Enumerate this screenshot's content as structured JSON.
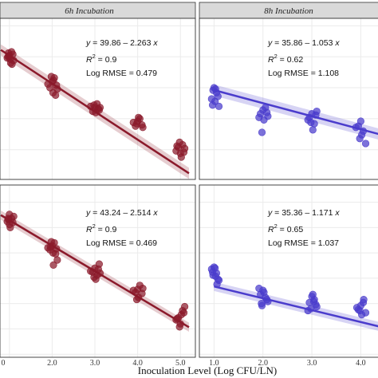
{
  "chart_data": [
    {
      "type": "scatter",
      "panel": "top-left",
      "strip": "6h Incubation",
      "color": "#8b1a2b",
      "fit": {
        "intercept": 39.86,
        "slope": -2.263
      },
      "equation": {
        "y": "y",
        "eq_text": " = 39.86 – 2.263 ",
        "x": "x"
      },
      "r2": {
        "label": "R",
        "sup": "2",
        "value": " = 0.9"
      },
      "rmse": "Log RMSE = 0.479",
      "x": [
        1.0,
        1.05,
        0.95,
        1.1,
        1.0,
        0.98,
        1.02,
        1.08,
        0.97,
        1.03,
        1.06,
        2.0,
        1.95,
        2.05,
        2.1,
        2.02,
        1.9,
        2.08,
        1.98,
        2.03,
        2.12,
        3.0,
        2.95,
        3.05,
        3.1,
        2.9,
        3.02,
        3.08,
        2.98,
        3.12,
        4.0,
        3.95,
        4.05,
        4.1,
        3.9,
        4.02,
        4.12,
        3.98,
        5.0,
        4.95,
        5.05,
        4.9,
        5.1,
        5.02,
        4.98,
        4.92,
        5.08
      ],
      "y": [
        37.6,
        37.9,
        37.4,
        37.2,
        37.5,
        37.8,
        37.3,
        37.7,
        37.5,
        37.0,
        36.9,
        35.5,
        35.0,
        35.8,
        35.2,
        34.6,
        35.3,
        34.4,
        35.9,
        35.6,
        34.9,
        33.4,
        33.1,
        33.7,
        33.2,
        33.5,
        33.0,
        33.3,
        33.6,
        33.4,
        32.3,
        31.9,
        32.5,
        32.0,
        32.2,
        32.6,
        31.8,
        32.1,
        29.7,
        30.2,
        30.4,
        29.9,
        30.1,
        29.4,
        30.6,
        30.3,
        29.8
      ],
      "xlim": [
        0.78,
        5.35
      ],
      "ylim": [
        27.6,
        40.6
      ]
    },
    {
      "type": "scatter",
      "panel": "top-right",
      "strip": "8h Incubation",
      "color": "#4a3ccc",
      "fit": {
        "intercept": 35.86,
        "slope": -1.053
      },
      "equation": {
        "y": "y",
        "eq_text": " = 35.86 – 1.053 ",
        "x": "x"
      },
      "r2": {
        "label": "R",
        "sup": "2",
        "value": " = 0.62"
      },
      "rmse": "Log RMSE = 1.108",
      "x": [
        1.0,
        1.05,
        0.95,
        1.1,
        0.98,
        1.02,
        1.08,
        0.97,
        1.03,
        2.0,
        1.95,
        2.05,
        2.1,
        1.92,
        2.08,
        1.98,
        2.02,
        3.0,
        2.95,
        3.05,
        3.1,
        2.92,
        3.02,
        3.08,
        2.98,
        4.0,
        3.95,
        4.05,
        4.1,
        3.9,
        4.02,
        3.98
      ],
      "y": [
        35.0,
        34.6,
        34.1,
        33.5,
        34.8,
        33.9,
        34.3,
        33.6,
        34.9,
        33.2,
        32.9,
        33.4,
        32.7,
        32.6,
        33.0,
        31.4,
        32.4,
        32.9,
        32.6,
        32.1,
        33.1,
        32.4,
        31.6,
        32.8,
        32.2,
        32.3,
        31.9,
        31.5,
        30.5,
        31.8,
        31.2,
        30.9
      ],
      "xlim": [
        0.7,
        4.45
      ],
      "ylim": [
        27.6,
        40.6
      ]
    },
    {
      "type": "scatter",
      "panel": "bottom-left",
      "strip": "",
      "color": "#8b1a2b",
      "fit": {
        "intercept": 43.24,
        "slope": -2.514
      },
      "equation": {
        "y": "y",
        "eq_text": " = 43.24 – 2.514 ",
        "x": "x"
      },
      "r2": {
        "label": "R",
        "sup": "2",
        "value": " = 0.9"
      },
      "rmse": "Log RMSE = 0.469",
      "x": [
        1.0,
        1.05,
        0.95,
        1.1,
        1.0,
        0.98,
        1.02,
        1.08,
        0.97,
        2.0,
        1.95,
        2.05,
        2.1,
        2.02,
        1.9,
        2.08,
        1.98,
        2.03,
        2.12,
        1.96,
        3.0,
        2.95,
        3.05,
        3.1,
        2.9,
        3.02,
        3.08,
        2.98,
        3.12,
        4.0,
        3.95,
        4.05,
        4.1,
        3.9,
        4.02,
        4.12,
        3.98,
        5.0,
        4.95,
        5.05,
        4.9,
        5.1,
        5.02,
        4.98,
        4.92,
        5.08
      ],
      "y": [
        41.3,
        40.9,
        40.6,
        41.1,
        40.3,
        40.8,
        40.0,
        40.5,
        40.9,
        38.2,
        37.8,
        38.5,
        37.9,
        37.5,
        38.0,
        37.4,
        38.6,
        36.3,
        36.8,
        38.1,
        36.0,
        35.6,
        35.3,
        36.4,
        35.7,
        34.9,
        35.9,
        35.1,
        35.5,
        33.9,
        33.6,
        34.3,
        33.5,
        33.8,
        33.1,
        34.0,
        32.9,
        30.5,
        31.1,
        31.8,
        30.9,
        32.2,
        31.4,
        30.2,
        31.0,
        31.6
      ],
      "xlim": [
        0.78,
        5.35
      ],
      "ylim": [
        27.2,
        44.2
      ]
    },
    {
      "type": "scatter",
      "panel": "bottom-right",
      "strip": "",
      "color": "#4a3ccc",
      "fit": {
        "intercept": 35.36,
        "slope": -1.171
      },
      "equation": {
        "y": "y",
        "eq_text": " = 35.36 – 1.171 ",
        "x": "x"
      },
      "r2": {
        "label": "R",
        "sup": "2",
        "value": " = 0.65"
      },
      "rmse": "Log RMSE = 1.037",
      "x": [
        1.0,
        1.05,
        0.95,
        1.1,
        0.98,
        1.02,
        1.08,
        0.97,
        1.03,
        1.06,
        2.0,
        1.95,
        2.05,
        2.1,
        1.92,
        2.08,
        1.98,
        2.02,
        1.97,
        3.0,
        2.95,
        3.05,
        3.1,
        2.92,
        3.02,
        3.08,
        2.98,
        3.04,
        4.0,
        3.95,
        4.05,
        4.1,
        3.92,
        4.02,
        3.98,
        4.06
      ],
      "y": [
        36.1,
        35.5,
        35.9,
        34.8,
        35.3,
        36.0,
        34.9,
        35.6,
        35.2,
        34.4,
        33.8,
        33.4,
        33.1,
        32.7,
        34.0,
        32.9,
        32.3,
        33.6,
        32.5,
        33.2,
        32.6,
        32.9,
        32.2,
        31.8,
        33.4,
        32.4,
        32.0,
        32.7,
        32.3,
        31.9,
        32.6,
        31.6,
        32.1,
        31.4,
        31.8,
        32.9
      ],
      "xlim": [
        0.7,
        4.45
      ],
      "ylim": [
        27.2,
        44.2
      ]
    }
  ],
  "x_ticks_left": [
    "2.0",
    "3.0",
    "4.0",
    "5.0"
  ],
  "x_ticks_right": [
    "1.0",
    "2.0",
    "3.0",
    "4.0"
  ],
  "x_ticks_left_cut": "0",
  "xlabel": "Inoculation Level (Log CFU/LN)",
  "colors": {
    "red": "#8b1a2b",
    "blue": "#4a3ccc",
    "strip_bg": "#d9d9d9",
    "panel_border": "#333333",
    "grid": "#ebebeb"
  }
}
